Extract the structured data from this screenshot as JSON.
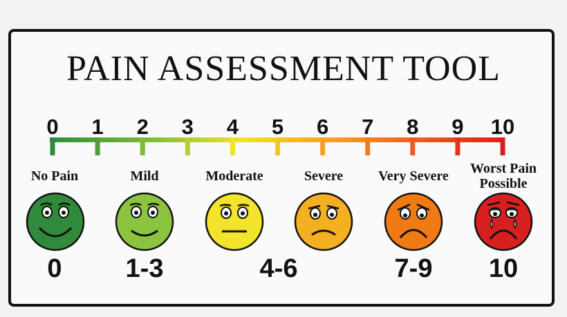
{
  "title": "PAIN ASSESSMENT TOOL",
  "scale": {
    "ticks": [
      "0",
      "1",
      "2",
      "3",
      "4",
      "5",
      "6",
      "7",
      "8",
      "9",
      "10"
    ],
    "gradient_colors": [
      "#2e8b3a",
      "#7dbb3a",
      "#f2e22a",
      "#f4a020",
      "#ec5a1e",
      "#d81e1e"
    ]
  },
  "categories": [
    {
      "label": "No Pain",
      "range": "0",
      "color": "#2f8a3b",
      "expression": "big-smile-face-icon"
    },
    {
      "label": "Mild",
      "range": "1-3",
      "color": "#8cc43f",
      "expression": "smile-face-icon"
    },
    {
      "label": "Moderate",
      "range": "4-6",
      "color": "#f2e32b",
      "expression": "neutral-face-icon"
    },
    {
      "label": "Severe",
      "range": "",
      "color": "#f3b020",
      "expression": "slight-frown-face-icon"
    },
    {
      "label": "Very Severe",
      "range": "7-9",
      "color": "#f07a14",
      "expression": "frown-face-icon"
    },
    {
      "label": "Worst Pain Possible",
      "label_line1": "Worst Pain",
      "label_line2": "Possible",
      "range": "10",
      "color": "#d62020",
      "expression": "crying-face-icon"
    }
  ]
}
